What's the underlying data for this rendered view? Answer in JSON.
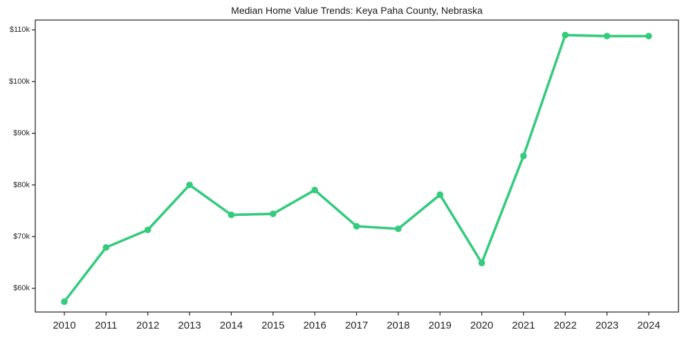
{
  "chart_data": {
    "type": "line",
    "title": "Median Home Value Trends: Keya Paha County, Nebraska",
    "x": [
      2010,
      2011,
      2012,
      2013,
      2014,
      2015,
      2016,
      2017,
      2018,
      2019,
      2020,
      2021,
      2022,
      2023,
      2024
    ],
    "x_tick_labels": [
      "2010",
      "2011",
      "2012",
      "2013",
      "2014",
      "2015",
      "2016",
      "2017",
      "2018",
      "2019",
      "2020",
      "2021",
      "2022",
      "2023",
      "2024"
    ],
    "values": [
      57400,
      67900,
      71300,
      80000,
      74200,
      74400,
      79000,
      72000,
      71500,
      78100,
      64900,
      85600,
      109000,
      108800,
      108800
    ],
    "y_ticks": [
      60000,
      70000,
      80000,
      90000,
      100000,
      110000
    ],
    "y_tick_labels": [
      "$60k",
      "$70k",
      "$80k",
      "$90k",
      "$100k",
      "$110k"
    ],
    "ylim": [
      55400,
      111900
    ],
    "grid": false,
    "legend": "none",
    "line_color": "#34cb7d",
    "axis_color": "#1a1a1a",
    "text_color": "#262626",
    "background": "#ffffff"
  }
}
